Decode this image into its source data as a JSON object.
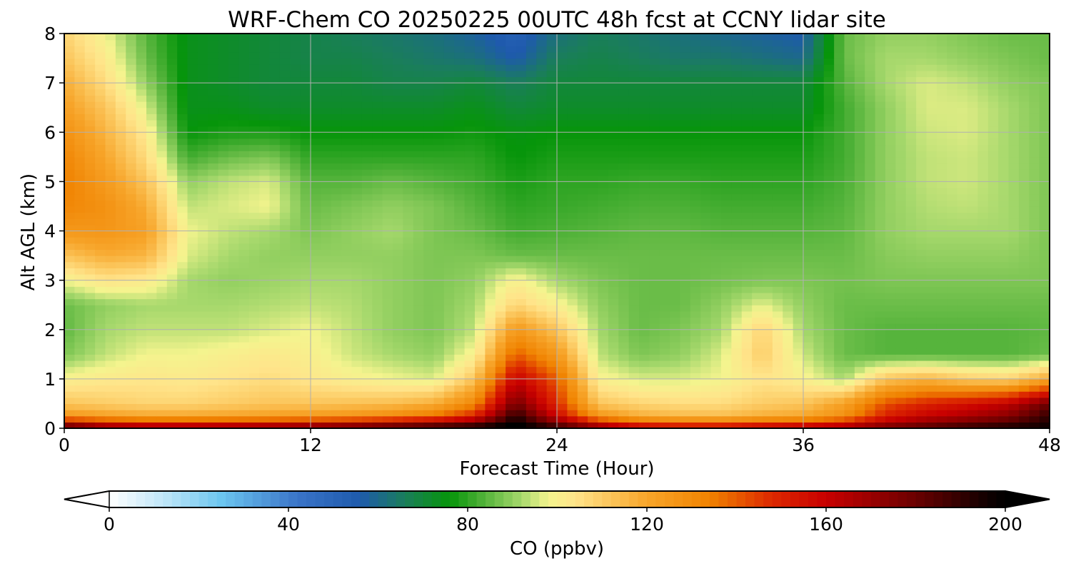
{
  "chart_data": {
    "type": "heatmap",
    "title": "WRF-Chem CO  20250225 00UTC 48h fcst at CCNY lidar site",
    "xlabel": "Forecast Time (Hour)",
    "ylabel": "Alt AGL (km)",
    "xlim": [
      0,
      48
    ],
    "ylim": [
      0,
      8
    ],
    "xticks": [
      0,
      12,
      24,
      36,
      48
    ],
    "yticks": [
      0,
      1,
      2,
      3,
      4,
      5,
      6,
      7,
      8
    ],
    "grid": true,
    "x": [
      0,
      2,
      4,
      6,
      8,
      10,
      12,
      14,
      16,
      18,
      20,
      22,
      24,
      26,
      28,
      30,
      32,
      34,
      36,
      38,
      40,
      42,
      44,
      46,
      48
    ],
    "y": [
      0,
      0.25,
      0.5,
      1,
      1.5,
      2,
      2.5,
      3,
      3.5,
      4,
      4.5,
      5,
      5.5,
      6,
      6.5,
      7,
      7.5,
      8
    ],
    "z": [
      [
        192,
        178,
        175,
        175,
        176,
        178,
        182,
        186,
        191,
        196,
        200,
        205,
        193,
        178,
        165,
        160,
        160,
        165,
        168,
        172,
        180,
        186,
        192,
        196,
        198
      ],
      [
        125,
        122,
        120,
        120,
        121,
        122,
        124,
        126,
        130,
        136,
        150,
        192,
        158,
        126,
        118,
        115,
        114,
        118,
        120,
        128,
        150,
        160,
        166,
        174,
        190
      ],
      [
        112,
        110,
        108,
        108,
        110,
        112,
        112,
        113,
        114,
        118,
        132,
        178,
        148,
        112,
        108,
        106,
        106,
        110,
        112,
        122,
        142,
        150,
        155,
        162,
        180
      ],
      [
        100,
        102,
        103,
        102,
        104,
        106,
        103,
        100,
        98,
        96,
        112,
        160,
        140,
        100,
        96,
        96,
        98,
        104,
        100,
        92,
        112,
        116,
        110,
        108,
        120
      ],
      [
        88,
        94,
        98,
        98,
        100,
        102,
        100,
        95,
        92,
        90,
        100,
        140,
        125,
        94,
        88,
        90,
        96,
        110,
        95,
        86,
        84,
        84,
        84,
        84,
        86
      ],
      [
        85,
        92,
        94,
        94,
        94,
        96,
        98,
        94,
        90,
        88,
        94,
        125,
        112,
        92,
        86,
        88,
        92,
        108,
        92,
        86,
        84,
        84,
        84,
        84,
        85
      ],
      [
        86,
        90,
        92,
        92,
        92,
        93,
        94,
        93,
        90,
        88,
        92,
        108,
        100,
        90,
        86,
        86,
        90,
        97,
        90,
        86,
        86,
        86,
        86,
        86,
        86
      ],
      [
        98,
        104,
        102,
        92,
        90,
        91,
        92,
        92,
        90,
        88,
        90,
        100,
        92,
        88,
        86,
        86,
        87,
        88,
        88,
        87,
        88,
        88,
        88,
        88,
        88
      ],
      [
        112,
        118,
        116,
        96,
        92,
        90,
        90,
        90,
        90,
        88,
        88,
        86,
        86,
        86,
        86,
        86,
        86,
        86,
        86,
        86,
        89,
        90,
        90,
        90,
        88
      ],
      [
        125,
        126,
        122,
        98,
        94,
        92,
        88,
        90,
        92,
        88,
        86,
        82,
        83,
        84,
        85,
        85,
        84,
        84,
        84,
        85,
        90,
        92,
        92,
        92,
        88
      ],
      [
        132,
        128,
        118,
        94,
        96,
        98,
        86,
        88,
        90,
        88,
        84,
        80,
        81,
        82,
        83,
        83,
        82,
        82,
        82,
        84,
        90,
        93,
        94,
        92,
        88
      ],
      [
        134,
        124,
        112,
        90,
        94,
        96,
        84,
        84,
        86,
        84,
        82,
        78,
        80,
        80,
        81,
        81,
        80,
        80,
        80,
        83,
        90,
        94,
        95,
        92,
        88
      ],
      [
        132,
        120,
        106,
        82,
        86,
        88,
        80,
        80,
        80,
        80,
        80,
        76,
        78,
        78,
        78,
        78,
        78,
        78,
        78,
        82,
        90,
        94,
        95,
        92,
        88
      ],
      [
        128,
        116,
        102,
        76,
        78,
        78,
        76,
        76,
        76,
        76,
        77,
        75,
        76,
        76,
        76,
        76,
        76,
        76,
        76,
        82,
        90,
        95,
        96,
        92,
        88
      ],
      [
        122,
        112,
        96,
        74,
        74,
        72,
        72,
        72,
        72,
        72,
        74,
        70,
        72,
        72,
        72,
        72,
        72,
        72,
        72,
        82,
        90,
        96,
        96,
        92,
        88
      ],
      [
        118,
        106,
        90,
        74,
        72,
        70,
        70,
        70,
        68,
        68,
        70,
        66,
        70,
        70,
        70,
        70,
        70,
        70,
        70,
        84,
        92,
        96,
        94,
        90,
        88
      ],
      [
        112,
        102,
        86,
        74,
        72,
        70,
        68,
        68,
        66,
        64,
        62,
        56,
        66,
        68,
        66,
        64,
        64,
        62,
        60,
        86,
        92,
        92,
        90,
        88,
        86
      ],
      [
        108,
        98,
        84,
        74,
        72,
        70,
        68,
        66,
        64,
        62,
        58,
        52,
        62,
        66,
        64,
        62,
        60,
        58,
        56,
        86,
        90,
        90,
        88,
        86,
        86
      ]
    ],
    "colorbar": {
      "label": "CO  (ppbv)",
      "ticks": [
        0,
        40,
        80,
        120,
        160,
        200
      ],
      "vmin": 0,
      "vmax": 200,
      "extend": "both",
      "placement": "bottom",
      "stops": [
        {
          "v": 0,
          "c": "#ffffff"
        },
        {
          "v": 12,
          "c": "#c0e6f8"
        },
        {
          "v": 25,
          "c": "#6cc6f0"
        },
        {
          "v": 42,
          "c": "#3a74c8"
        },
        {
          "v": 56,
          "c": "#1e5aac"
        },
        {
          "v": 66,
          "c": "#1a7e5a"
        },
        {
          "v": 76,
          "c": "#06950a"
        },
        {
          "v": 84,
          "c": "#56b43c"
        },
        {
          "v": 92,
          "c": "#a6d86c"
        },
        {
          "v": 98,
          "c": "#f4f48e"
        },
        {
          "v": 104,
          "c": "#ffe48a"
        },
        {
          "v": 120,
          "c": "#f7a52a"
        },
        {
          "v": 134,
          "c": "#f08200"
        },
        {
          "v": 148,
          "c": "#dc2800"
        },
        {
          "v": 160,
          "c": "#c80000"
        },
        {
          "v": 180,
          "c": "#6a0000"
        },
        {
          "v": 196,
          "c": "#100000"
        },
        {
          "v": 200,
          "c": "#000000"
        }
      ]
    }
  }
}
